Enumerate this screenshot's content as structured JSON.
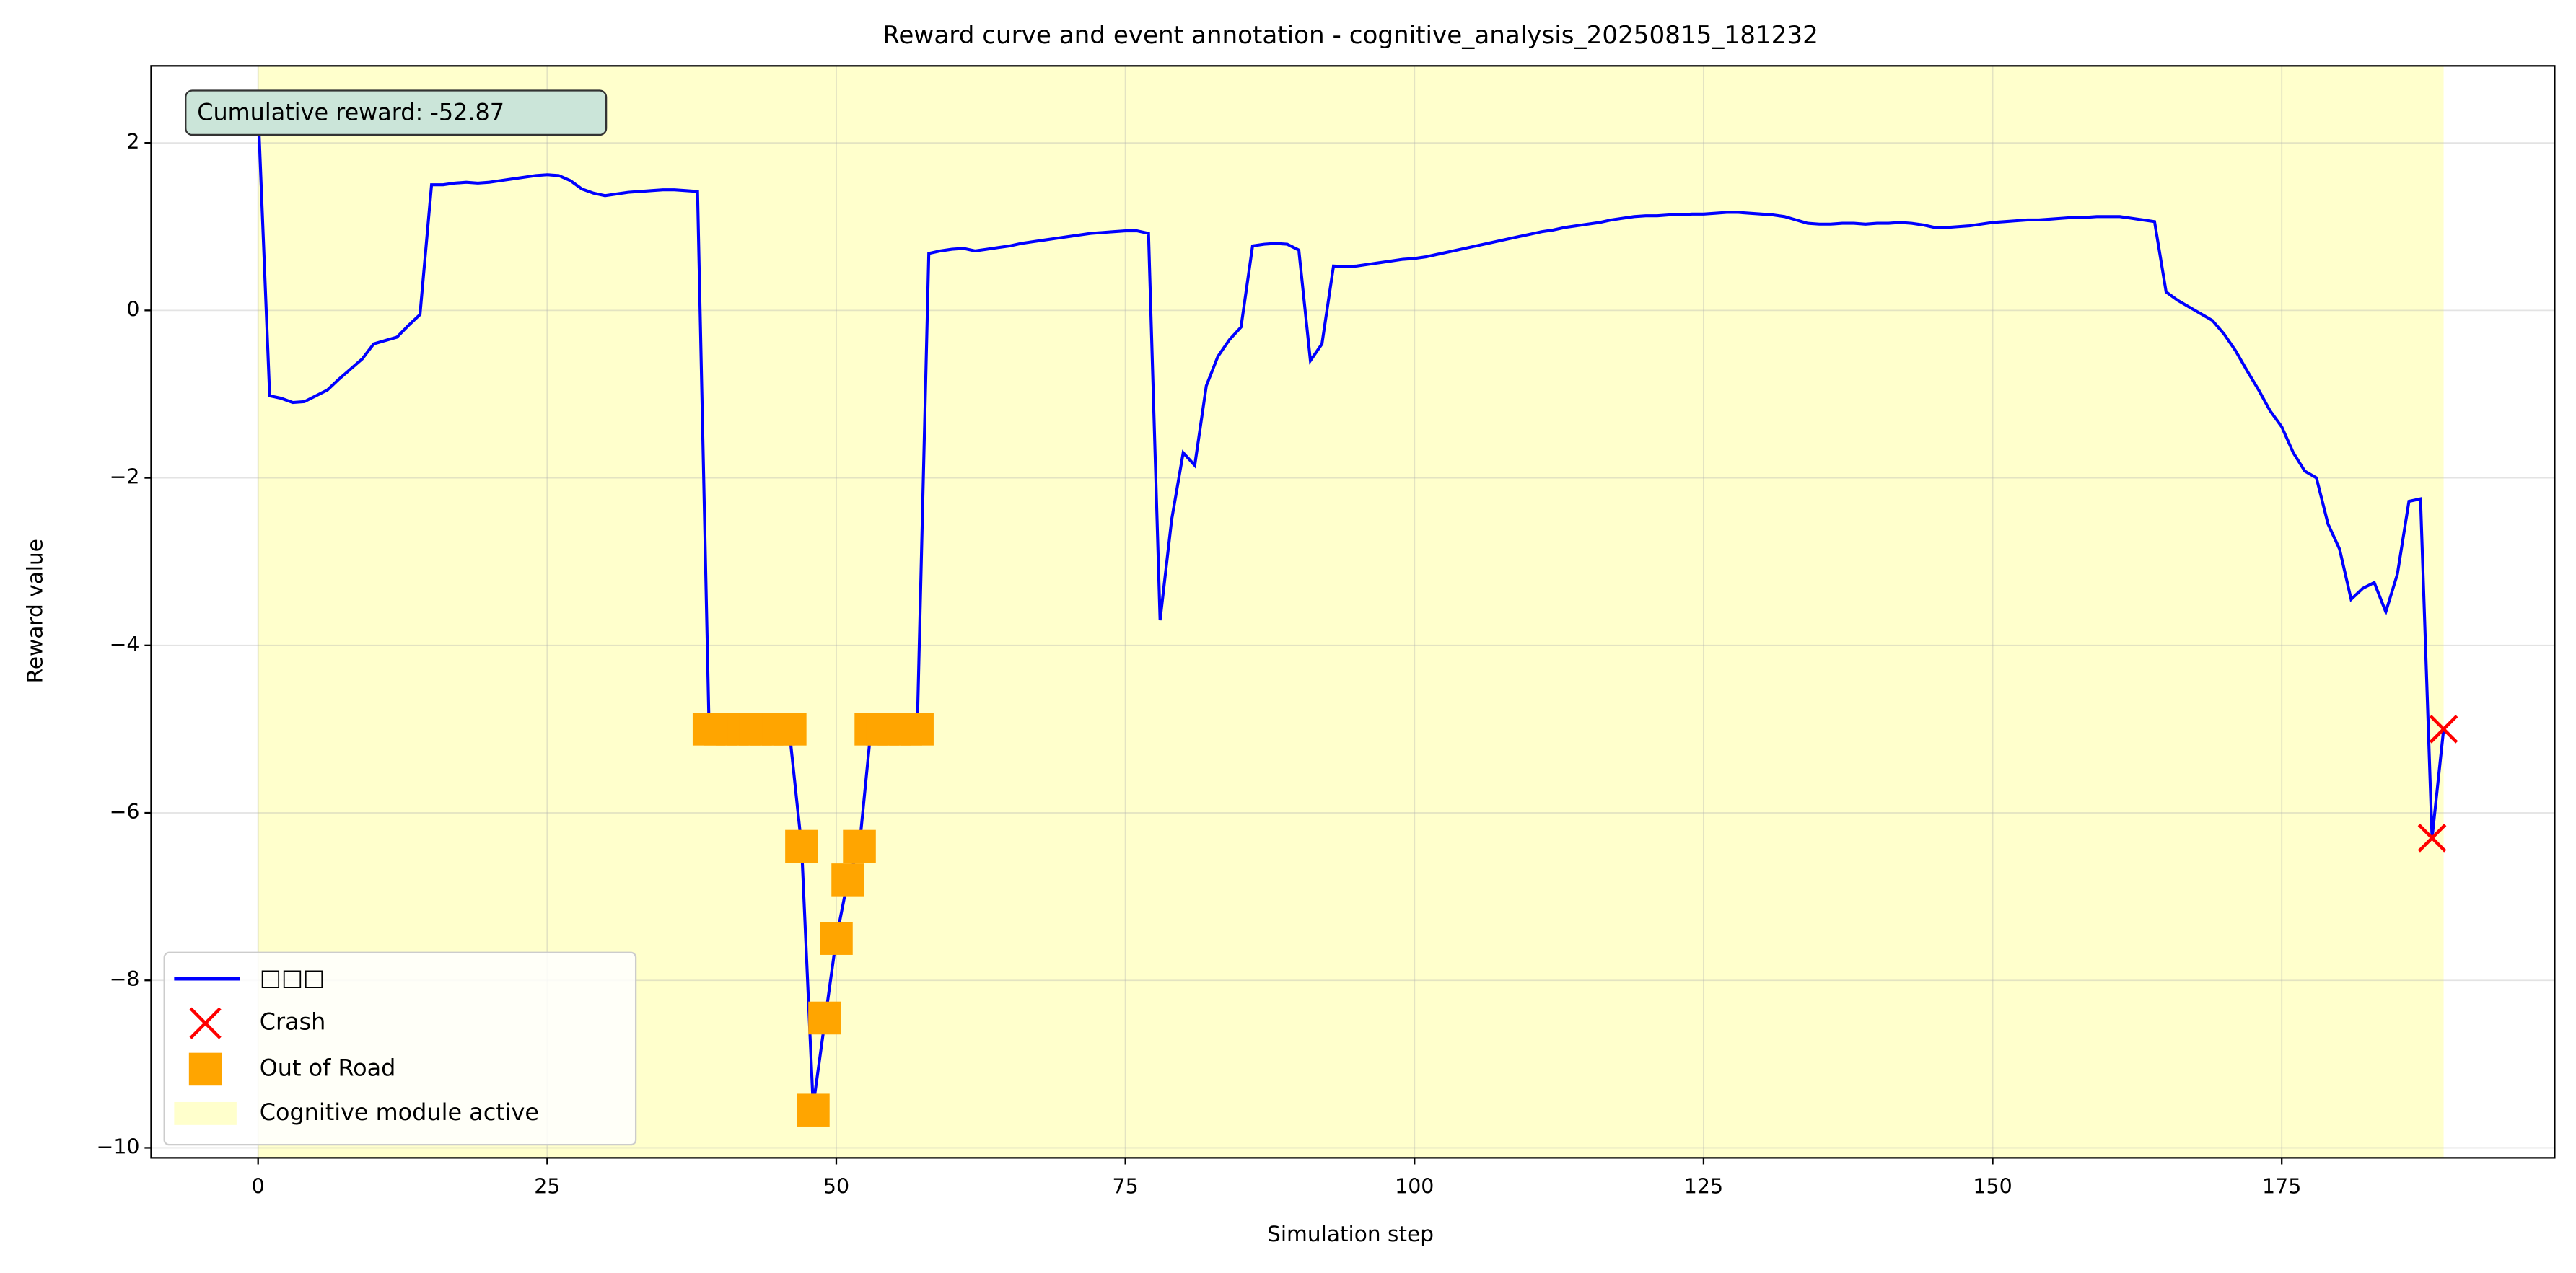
{
  "chart_data": {
    "type": "line",
    "title": "Reward curve and event annotation - cognitive_analysis_20250815_181232",
    "xlabel": "Simulation step",
    "ylabel": "Reward value",
    "annotation": "Cumulative reward: -52.87",
    "xlim": [
      -9.25,
      198.6
    ],
    "ylim": [
      -10.12,
      2.92
    ],
    "xticks": [
      0,
      25,
      50,
      75,
      100,
      125,
      150,
      175
    ],
    "yticks": [
      {
        "value": -10,
        "label": "−10"
      },
      {
        "value": -8,
        "label": "−8"
      },
      {
        "value": -6,
        "label": "−6"
      },
      {
        "value": -4,
        "label": "−4"
      },
      {
        "value": -2,
        "label": "−2"
      },
      0,
      2
    ],
    "grid": true,
    "legend": "lower left",
    "series": [
      {
        "name": "□□□",
        "color": "#0000ff",
        "x": [
          0,
          1,
          2,
          3,
          4,
          5,
          6,
          7,
          8,
          9,
          10,
          11,
          12,
          13,
          14,
          15,
          16,
          17,
          18,
          19,
          20,
          21,
          22,
          23,
          24,
          25,
          26,
          27,
          28,
          29,
          30,
          31,
          32,
          33,
          34,
          35,
          36,
          37,
          38,
          39,
          40,
          41,
          42,
          43,
          44,
          45,
          46,
          47,
          48,
          49,
          50,
          51,
          52,
          53,
          54,
          55,
          56,
          57,
          58,
          59,
          60,
          61,
          62,
          63,
          64,
          65,
          66,
          67,
          68,
          69,
          70,
          71,
          72,
          73,
          74,
          75,
          76,
          77,
          78,
          79,
          80,
          81,
          82,
          83,
          84,
          85,
          86,
          87,
          88,
          89,
          90,
          91,
          92,
          93,
          94,
          95,
          96,
          97,
          98,
          99,
          100,
          101,
          102,
          103,
          104,
          105,
          106,
          107,
          108,
          109,
          110,
          111,
          112,
          113,
          114,
          115,
          116,
          117,
          118,
          119,
          120,
          121,
          122,
          123,
          124,
          125,
          126,
          127,
          128,
          129,
          130,
          131,
          132,
          133,
          134,
          135,
          136,
          137,
          138,
          139,
          140,
          141,
          142,
          143,
          144,
          145,
          146,
          147,
          148,
          149,
          150,
          151,
          152,
          153,
          154,
          155,
          156,
          157,
          158,
          159,
          160,
          161,
          162,
          163,
          164,
          165,
          166,
          167,
          168,
          169,
          170,
          171,
          172,
          173,
          174,
          175,
          176,
          177,
          178,
          179,
          180,
          181,
          182,
          183,
          184,
          185,
          186,
          187,
          188,
          189
        ],
        "values": [
          2.4,
          -1.02,
          -1.05,
          -1.1,
          -1.09,
          -1.02,
          -0.95,
          -0.82,
          -0.7,
          -0.58,
          -0.4,
          -0.36,
          -0.32,
          -0.18,
          -0.05,
          1.5,
          1.5,
          1.52,
          1.53,
          1.52,
          1.53,
          1.55,
          1.57,
          1.59,
          1.61,
          1.62,
          1.61,
          1.55,
          1.45,
          1.4,
          1.37,
          1.39,
          1.41,
          1.42,
          1.43,
          1.44,
          1.44,
          1.43,
          1.42,
          -5,
          -5,
          -5,
          -5,
          -5,
          -5,
          -5,
          -5.1,
          -6.4,
          -9.5,
          -8.5,
          -7.5,
          -6.8,
          -6.4,
          -5,
          -5,
          -5,
          -5,
          -5,
          0.68,
          0.71,
          0.73,
          0.74,
          0.71,
          0.73,
          0.75,
          0.77,
          0.8,
          0.82,
          0.84,
          0.86,
          0.88,
          0.9,
          0.92,
          0.93,
          0.94,
          0.95,
          0.95,
          0.92,
          -3.7,
          -2.5,
          -1.7,
          -1.85,
          -0.9,
          -0.55,
          -0.35,
          -0.2,
          0.77,
          0.79,
          0.8,
          0.79,
          0.72,
          -0.6,
          -0.4,
          0.53,
          0.52,
          0.53,
          0.55,
          0.57,
          0.59,
          0.61,
          0.62,
          0.64,
          0.67,
          0.7,
          0.73,
          0.76,
          0.79,
          0.82,
          0.85,
          0.88,
          0.91,
          0.94,
          0.96,
          0.99,
          1.01,
          1.03,
          1.05,
          1.08,
          1.1,
          1.12,
          1.13,
          1.13,
          1.14,
          1.14,
          1.15,
          1.15,
          1.16,
          1.17,
          1.17,
          1.16,
          1.15,
          1.14,
          1.12,
          1.08,
          1.04,
          1.03,
          1.03,
          1.04,
          1.04,
          1.03,
          1.04,
          1.04,
          1.05,
          1.04,
          1.02,
          0.99,
          0.99,
          1.0,
          1.01,
          1.03,
          1.05,
          1.06,
          1.07,
          1.08,
          1.08,
          1.09,
          1.1,
          1.11,
          1.11,
          1.12,
          1.12,
          1.12,
          1.1,
          1.08,
          1.06,
          0.22,
          0.12,
          0.04,
          -0.04,
          -0.12,
          -0.28,
          -0.48,
          -0.72,
          -0.95,
          -1.2,
          -1.39,
          -1.7,
          -1.92,
          -2.0,
          -2.55,
          -2.85,
          -3.45,
          -3.32,
          -3.25,
          -3.6,
          -3.15,
          -2.28,
          -2.25,
          -6.3,
          -5.0
        ]
      },
      {
        "name": "Crash",
        "color": "#ff0000",
        "marker": "x",
        "x": [
          188,
          189
        ],
        "values": [
          -6.3,
          -5.0
        ]
      },
      {
        "name": "Out of Road",
        "color": "#ffa500",
        "marker": "s",
        "x": [
          39,
          40,
          41,
          42,
          43,
          44,
          45,
          46,
          53,
          54,
          55,
          56,
          57,
          47,
          48,
          49,
          50,
          51,
          52
        ],
        "values": [
          -5,
          -5,
          -5,
          -5,
          -5,
          -5,
          -5,
          -5,
          -5,
          -5,
          -5,
          -5,
          -5,
          -6.4,
          -9.55,
          -8.45,
          -7.5,
          -6.8,
          -6.4
        ]
      }
    ],
    "span": {
      "name": "Cognitive module active",
      "color": "#ffffcc",
      "xlim": [
        0,
        189
      ]
    }
  }
}
